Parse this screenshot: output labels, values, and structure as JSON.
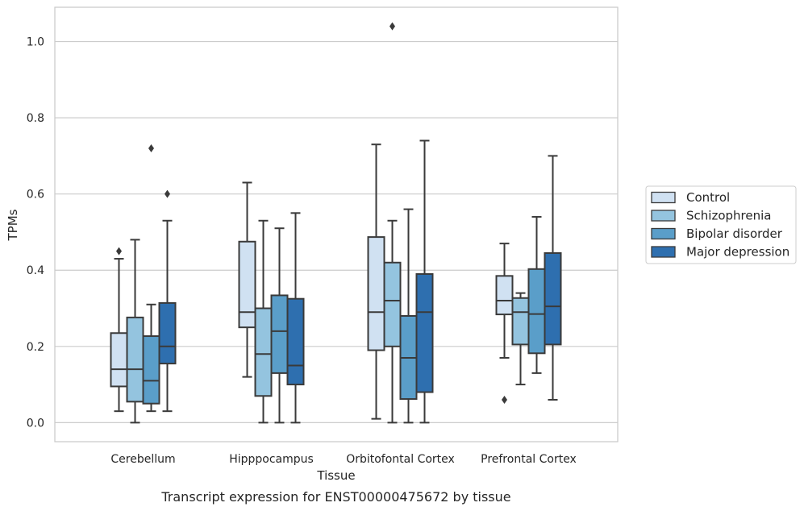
{
  "chart_data": {
    "type": "boxplot",
    "title": "",
    "caption": "Transcript expression for ENST00000475672 by tissue",
    "xlabel": "Tissue",
    "ylabel": "TPMs",
    "ylim": [
      -0.05,
      1.09
    ],
    "yticks": [
      0.0,
      0.2,
      0.4,
      0.6,
      0.8,
      1.0
    ],
    "ytick_labels": [
      "0.0",
      "0.2",
      "0.4",
      "0.6",
      "0.8",
      "1.0"
    ],
    "grid": true,
    "legend_position": "right",
    "categories": [
      "Cerebellum",
      "Hipppocampus",
      "Orbitofontal Cortex",
      "Prefrontal Cortex"
    ],
    "series": [
      {
        "name": "Control",
        "color": "#d0e1f2",
        "boxes": [
          {
            "whislo": 0.03,
            "q1": 0.095,
            "med": 0.14,
            "q3": 0.235,
            "whishi": 0.43,
            "fliers": [
              0.45
            ]
          },
          {
            "whislo": 0.12,
            "q1": 0.25,
            "med": 0.29,
            "q3": 0.475,
            "whishi": 0.63,
            "fliers": []
          },
          {
            "whislo": 0.01,
            "q1": 0.19,
            "med": 0.29,
            "q3": 0.487,
            "whishi": 0.73,
            "fliers": []
          },
          {
            "whislo": 0.17,
            "q1": 0.284,
            "med": 0.32,
            "q3": 0.385,
            "whishi": 0.47,
            "fliers": [
              0.06
            ]
          }
        ]
      },
      {
        "name": "Schizophrenia",
        "color": "#94c4df",
        "boxes": [
          {
            "whislo": 0.0,
            "q1": 0.055,
            "med": 0.14,
            "q3": 0.276,
            "whishi": 0.48,
            "fliers": []
          },
          {
            "whislo": 0.0,
            "q1": 0.07,
            "med": 0.18,
            "q3": 0.3,
            "whishi": 0.53,
            "fliers": []
          },
          {
            "whislo": 0.0,
            "q1": 0.2,
            "med": 0.32,
            "q3": 0.42,
            "whishi": 0.53,
            "fliers": [
              1.04
            ]
          },
          {
            "whislo": 0.1,
            "q1": 0.205,
            "med": 0.29,
            "q3": 0.327,
            "whishi": 0.34,
            "fliers": []
          }
        ]
      },
      {
        "name": "Bipolar disorder",
        "color": "#5a9ec9",
        "boxes": [
          {
            "whislo": 0.03,
            "q1": 0.05,
            "med": 0.11,
            "q3": 0.227,
            "whishi": 0.31,
            "fliers": [
              0.72
            ]
          },
          {
            "whislo": 0.0,
            "q1": 0.13,
            "med": 0.24,
            "q3": 0.334,
            "whishi": 0.51,
            "fliers": []
          },
          {
            "whislo": 0.0,
            "q1": 0.062,
            "med": 0.17,
            "q3": 0.28,
            "whishi": 0.56,
            "fliers": []
          },
          {
            "whislo": 0.13,
            "q1": 0.182,
            "med": 0.285,
            "q3": 0.403,
            "whishi": 0.54,
            "fliers": []
          }
        ]
      },
      {
        "name": "Major depression",
        "color": "#2e6faf",
        "boxes": [
          {
            "whislo": 0.03,
            "q1": 0.155,
            "med": 0.2,
            "q3": 0.314,
            "whishi": 0.53,
            "fliers": [
              0.6
            ]
          },
          {
            "whislo": 0.0,
            "q1": 0.1,
            "med": 0.15,
            "q3": 0.325,
            "whishi": 0.55,
            "fliers": []
          },
          {
            "whislo": 0.0,
            "q1": 0.08,
            "med": 0.29,
            "q3": 0.39,
            "whishi": 0.74,
            "fliers": []
          },
          {
            "whislo": 0.06,
            "q1": 0.205,
            "med": 0.305,
            "q3": 0.445,
            "whishi": 0.7,
            "fliers": []
          }
        ]
      }
    ]
  }
}
